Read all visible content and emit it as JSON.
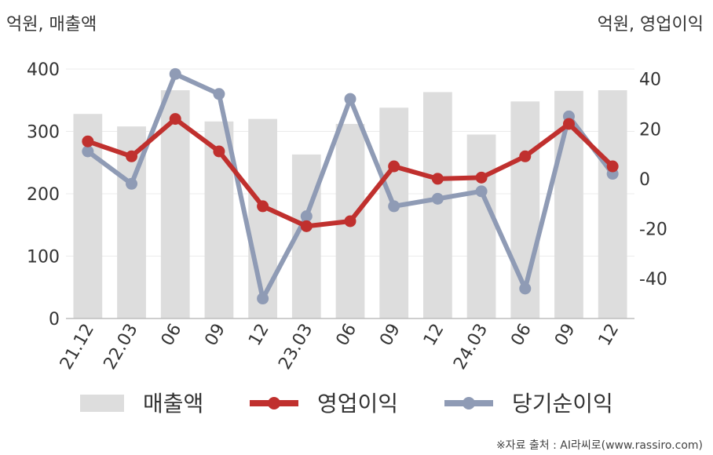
{
  "chart_data": {
    "type": "bar+line",
    "categories": [
      "21.12",
      "22.03",
      "06",
      "09",
      "12",
      "23.03",
      "06",
      "09",
      "12",
      "24.03",
      "06",
      "09",
      "12"
    ],
    "left_axis": {
      "unit_label": "억원, 매출액",
      "ticks": [
        0,
        100,
        200,
        300,
        400
      ],
      "range": [
        0,
        400
      ]
    },
    "right_axis": {
      "unit_label": "억원, 영업이익",
      "ticks": [
        -40,
        -20,
        0,
        20,
        40
      ],
      "range": [
        -56,
        44
      ]
    },
    "series": [
      {
        "name": "매출액",
        "type": "bar",
        "axis": "left",
        "color": "#dddddd",
        "values": [
          328,
          308,
          366,
          316,
          320,
          263,
          312,
          338,
          363,
          295,
          348,
          365,
          366
        ]
      },
      {
        "name": "영업이익",
        "type": "line",
        "axis": "right",
        "color": "#c0302e",
        "values": [
          15,
          9,
          24,
          11,
          -11,
          -19,
          -17,
          5,
          0,
          0.5,
          9,
          22,
          5
        ]
      },
      {
        "name": "당기순이익",
        "type": "line",
        "axis": "right",
        "color": "#8f9bb5",
        "values": [
          11,
          -2,
          42,
          34,
          -48,
          -15,
          32,
          -11,
          -8,
          -5,
          -44,
          25,
          2
        ]
      }
    ],
    "grid": true,
    "legend": "bottom"
  },
  "source": "※자료 출처 : AI라씨로(www.rassiro.com)"
}
